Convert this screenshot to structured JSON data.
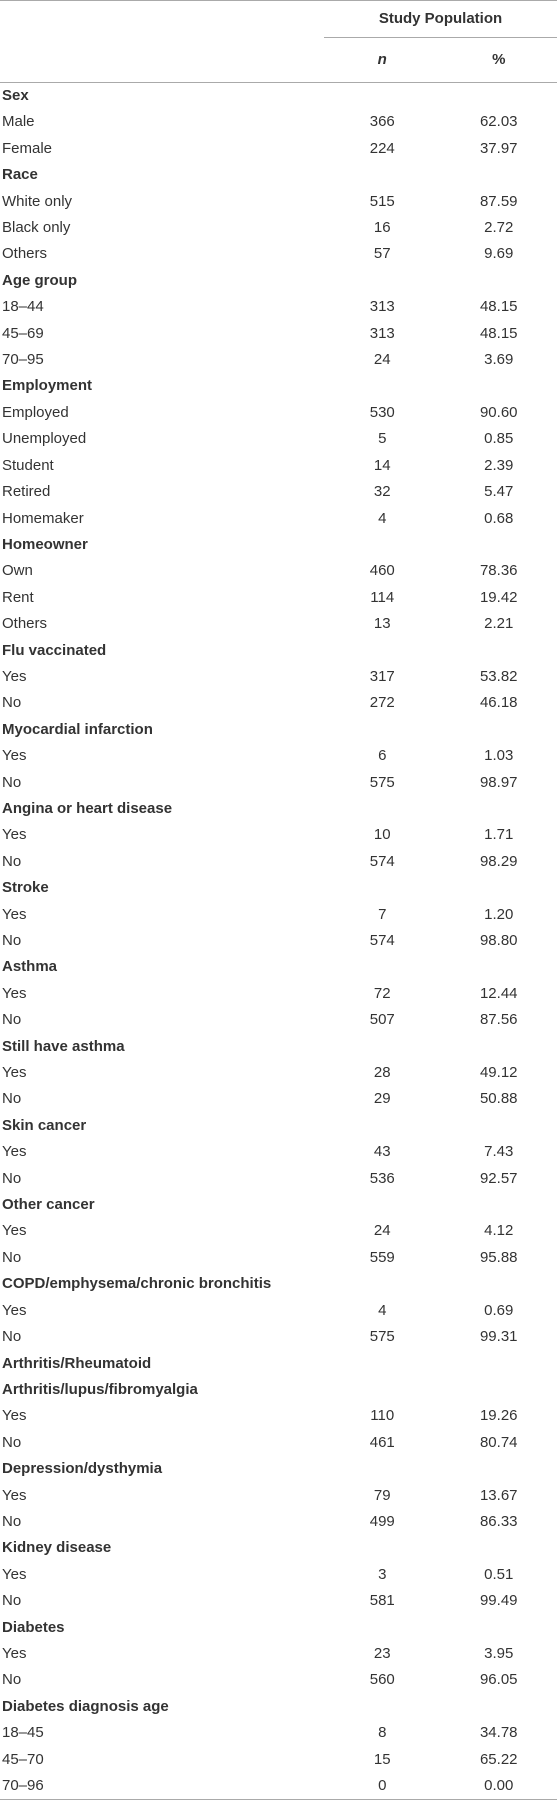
{
  "header": {
    "column_group": "Study Population",
    "columns": [
      "n",
      "%"
    ]
  },
  "groups": [
    {
      "label": "Sex",
      "rows": [
        [
          "Male",
          "366",
          "62.03"
        ],
        [
          "Female",
          "224",
          "37.97"
        ]
      ]
    },
    {
      "label": "Race",
      "rows": [
        [
          "White only",
          "515",
          "87.59"
        ],
        [
          "Black only",
          "16",
          "2.72"
        ],
        [
          "Others",
          "57",
          "9.69"
        ]
      ]
    },
    {
      "label": "Age group",
      "rows": [
        [
          "18–44",
          "313",
          "48.15"
        ],
        [
          "45–69",
          "313",
          "48.15"
        ],
        [
          "70–95",
          "24",
          "3.69"
        ]
      ]
    },
    {
      "label": "Employment",
      "rows": [
        [
          "Employed",
          "530",
          "90.60"
        ],
        [
          "Unemployed",
          "5",
          "0.85"
        ],
        [
          "Student",
          "14",
          "2.39"
        ],
        [
          "Retired",
          "32",
          "5.47"
        ],
        [
          "Homemaker",
          "4",
          "0.68"
        ]
      ]
    },
    {
      "label": "Homeowner",
      "rows": [
        [
          "Own",
          "460",
          "78.36"
        ],
        [
          "Rent",
          "114",
          "19.42"
        ],
        [
          "Others",
          "13",
          "2.21"
        ]
      ]
    },
    {
      "label": "Flu vaccinated",
      "rows": [
        [
          "Yes",
          "317",
          "53.82"
        ],
        [
          "No",
          "272",
          "46.18"
        ]
      ]
    },
    {
      "label": "Myocardial infarction",
      "rows": [
        [
          "Yes",
          "6",
          "1.03"
        ],
        [
          "No",
          "575",
          "98.97"
        ]
      ]
    },
    {
      "label": "Angina or heart disease",
      "rows": [
        [
          "Yes",
          "10",
          "1.71"
        ],
        [
          "No",
          "574",
          "98.29"
        ]
      ]
    },
    {
      "label": "Stroke",
      "rows": [
        [
          "Yes",
          "7",
          "1.20"
        ],
        [
          "No",
          "574",
          "98.80"
        ]
      ]
    },
    {
      "label": "Asthma",
      "rows": [
        [
          "Yes",
          "72",
          "12.44"
        ],
        [
          "No",
          "507",
          "87.56"
        ]
      ]
    },
    {
      "label": "Still have asthma",
      "rows": [
        [
          "Yes",
          "28",
          "49.12"
        ],
        [
          "No",
          "29",
          "50.88"
        ]
      ]
    },
    {
      "label": "Skin cancer",
      "rows": [
        [
          "Yes",
          "43",
          "7.43"
        ],
        [
          "No",
          "536",
          "92.57"
        ]
      ]
    },
    {
      "label": "Other cancer",
      "rows": [
        [
          "Yes",
          "24",
          "4.12"
        ],
        [
          "No",
          "559",
          "95.88"
        ]
      ]
    },
    {
      "label": "COPD/emphysema/chronic bronchitis",
      "rows": [
        [
          "Yes",
          "4",
          "0.69"
        ],
        [
          "No",
          "575",
          "99.31"
        ]
      ]
    },
    {
      "label": "Arthritis/Rheumatoid Arthritis/lupus/fibromyalgia",
      "rows": [
        [
          "Yes",
          "110",
          "19.26"
        ],
        [
          "No",
          "461",
          "80.74"
        ]
      ]
    },
    {
      "label": "Depression/dysthymia",
      "rows": [
        [
          "Yes",
          "79",
          "13.67"
        ],
        [
          "No",
          "499",
          "86.33"
        ]
      ]
    },
    {
      "label": "Kidney disease",
      "rows": [
        [
          "Yes",
          "3",
          "0.51"
        ],
        [
          "No",
          "581",
          "99.49"
        ]
      ]
    },
    {
      "label": "Diabetes",
      "rows": [
        [
          "Yes",
          "23",
          "3.95"
        ],
        [
          "No",
          "560",
          "96.05"
        ]
      ]
    },
    {
      "label": "Diabetes diagnosis age",
      "rows": [
        [
          "18–45",
          "8",
          "34.78"
        ],
        [
          "45–70",
          "15",
          "65.22"
        ],
        [
          "70–96",
          "0",
          "0.00"
        ]
      ]
    }
  ]
}
